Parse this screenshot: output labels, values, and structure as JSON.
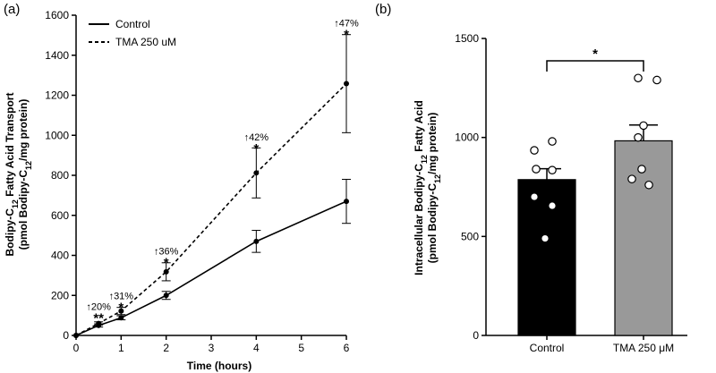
{
  "chart_data": [
    {
      "type": "line",
      "panel_label": "(a)",
      "xlabel": "Time (hours)",
      "ylabel_line1": "Bodipy-C12 Fatty Acid Transport",
      "ylabel_line2": "(pmol Bodipy-C12/mg protein)",
      "xlim": [
        0,
        6
      ],
      "ylim": [
        0,
        1600
      ],
      "xticks": [
        0,
        1,
        2,
        3,
        4,
        5,
        6
      ],
      "yticks": [
        0,
        200,
        400,
        600,
        800,
        1000,
        1200,
        1400,
        1600
      ],
      "series": [
        {
          "name": "Control",
          "style": "solid",
          "x": [
            0,
            0.5,
            1,
            2,
            4,
            6
          ],
          "y": [
            0,
            50,
            88,
            200,
            470,
            670
          ],
          "err": [
            0,
            8,
            10,
            20,
            55,
            110
          ]
        },
        {
          "name": "TMA 250 uM",
          "style": "dashed",
          "x": [
            0,
            0.5,
            1,
            2,
            4,
            6
          ],
          "y": [
            0,
            60,
            122,
            318,
            812,
            1258
          ],
          "err": [
            0,
            8,
            18,
            45,
            125,
            245
          ]
        }
      ],
      "annotations": [
        {
          "x": 0.5,
          "y": 100,
          "pct": "↑20%",
          "star": "**"
        },
        {
          "x": 1,
          "y": 155,
          "pct": "↑31%",
          "star": "*"
        },
        {
          "x": 2,
          "y": 378,
          "pct": "↑36%",
          "star": "*"
        },
        {
          "x": 4,
          "y": 948,
          "pct": "↑42%",
          "star": "*"
        },
        {
          "x": 6,
          "y": 1518,
          "pct": "↑47%",
          "star": "*"
        }
      ]
    },
    {
      "type": "bar",
      "panel_label": "(b)",
      "ylabel_line1": "Intracellular Bodipy-C12 Fatty Acid",
      "ylabel_line2": "(pmol Bodipy-C12/mg protein)",
      "ylim": [
        0,
        1500
      ],
      "yticks": [
        0,
        500,
        1000,
        1500
      ],
      "categories": [
        "Control",
        "TMA 250 μM"
      ],
      "values": [
        787,
        983
      ],
      "sem": [
        55,
        80
      ],
      "colors": [
        "#000000",
        "#999999"
      ],
      "points": [
        [
          980,
          935,
          840,
          835,
          700,
          655,
          490
        ],
        [
          1300,
          1290,
          1060,
          1000,
          840,
          790,
          760
        ]
      ],
      "significance": "*"
    }
  ]
}
